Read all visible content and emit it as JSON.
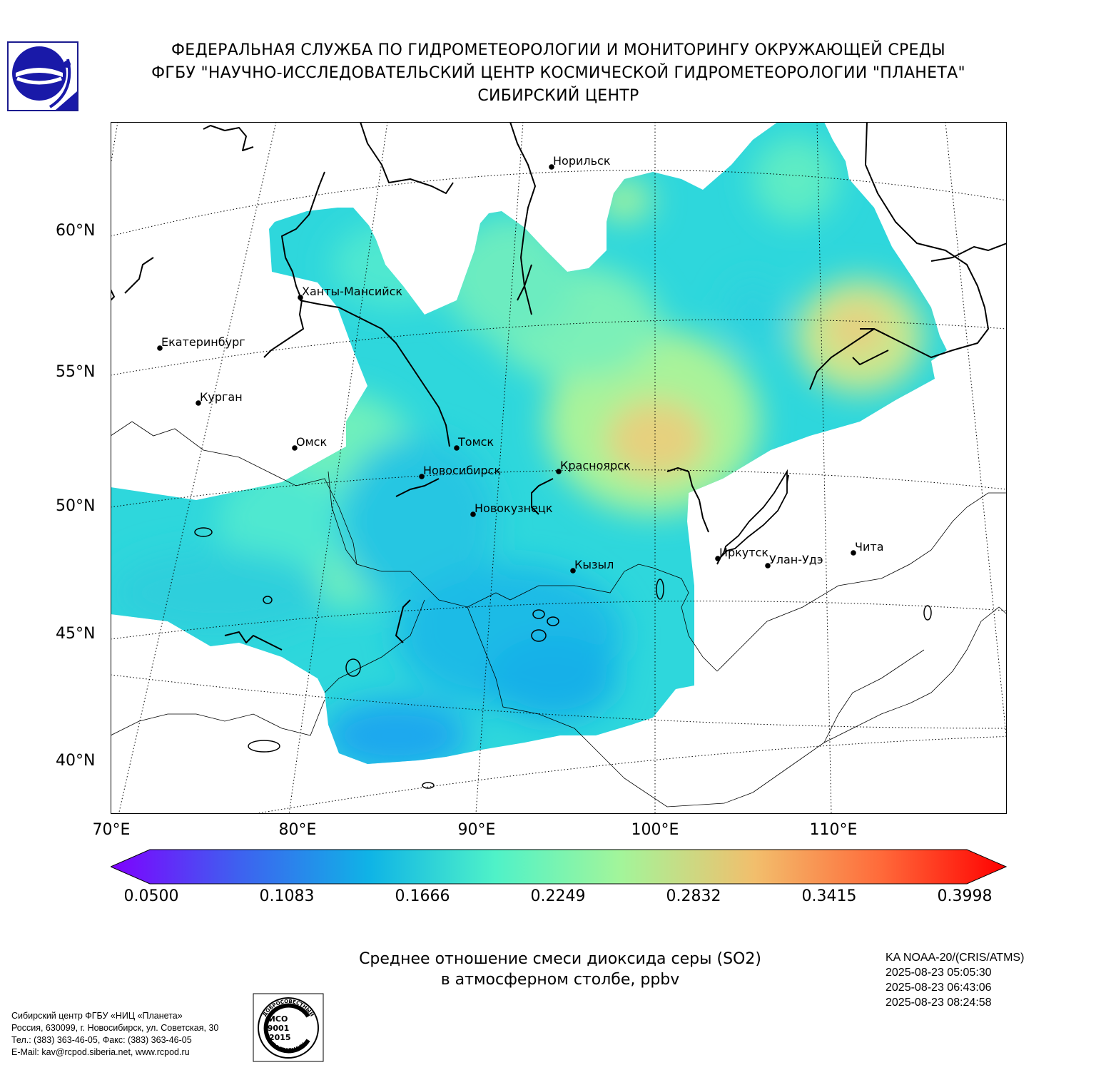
{
  "header": {
    "line1": "ФЕДЕРАЛЬНАЯ СЛУЖБА ПО ГИДРОМЕТЕОРОЛОГИИ И МОНИТОРИНГУ ОКРУЖАЮЩЕЙ СРЕДЫ",
    "line2": "ФГБУ \"НАУЧНО-ИССЛЕДОВАТЕЛЬСКИЙ ЦЕНТР КОСМИЧЕСКОЙ ГИДРОМЕТЕОРОЛОГИИ \"ПЛАНЕТА\"",
    "line3": "СИБИРСКИЙ ЦЕНТР"
  },
  "map": {
    "lat_labels": [
      "60°N",
      "55°N",
      "50°N",
      "45°N",
      "40°N"
    ],
    "lon_labels": [
      "70°E",
      "80°E",
      "90°E",
      "100°E",
      "110°E"
    ],
    "cities": [
      {
        "name": "Норильск"
      },
      {
        "name": "Ханты-Мансийск"
      },
      {
        "name": "Екатеринбург"
      },
      {
        "name": "Курган"
      },
      {
        "name": "Омск"
      },
      {
        "name": "Томск"
      },
      {
        "name": "Новосибирск"
      },
      {
        "name": "Красноярск"
      },
      {
        "name": "Новокузнецк"
      },
      {
        "name": "Кызыл"
      },
      {
        "name": "Иркутск"
      },
      {
        "name": "Улан-Удэ"
      },
      {
        "name": "Чита"
      }
    ]
  },
  "colorbar": {
    "ticks": [
      "0.0500",
      "0.1083",
      "0.1666",
      "0.2249",
      "0.2832",
      "0.3415",
      "0.3998"
    ],
    "colors": [
      "#7f00ff",
      "#3f5ff0",
      "#0fb4e6",
      "#4ff2c8",
      "#a3f59a",
      "#f2be6c",
      "#ff6a3a",
      "#ff0000"
    ]
  },
  "title": {
    "line1": "Среднее отношение смеси диоксида серы (SO2)",
    "line2": "в атмосферном столбе, ppbv"
  },
  "meta": {
    "satellite": "KA NOAA-20/(CRIS/ATMS)",
    "time1": "2025-08-23 05:05:30",
    "time2": "2025-08-23 06:43:06",
    "time3": "2025-08-23 08:24:58"
  },
  "footer": {
    "line1": "Сибирский центр ФГБУ «НИЦ «Планета»",
    "line2": "Россия, 630099, г. Новосибирск, ул. Советская, 30",
    "line3": "Тел.: (383) 363-46-05, Факс: (383) 363-46-05",
    "line4": "E-Mail: kav@rcpod.siberia.net, www.rcpod.ru"
  },
  "iso_badge": {
    "top": "ДОБРОСОВЕСТНЫЙ",
    "name": "ИСО",
    "num": "9001",
    "year": "-2015",
    "bottom": "ПОСТАВЩИК"
  }
}
